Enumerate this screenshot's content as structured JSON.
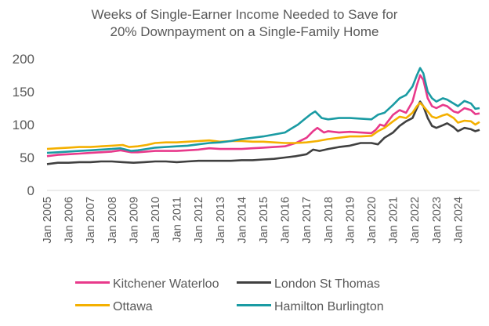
{
  "chart_data": {
    "type": "line",
    "title_lines": [
      "Weeks of Single-Earner Income Needed to Save for",
      "20% Downpayment on a Single-Family Home"
    ],
    "xlabel": "",
    "ylabel": "",
    "ylim": [
      0,
      200
    ],
    "yticks": [
      "0",
      "50",
      "100",
      "150",
      "200"
    ],
    "grid": false,
    "legend": "bottom",
    "categories": [
      "Jan 2005",
      "Jan 2006",
      "Jan 2007",
      "Jan 2008",
      "Jan 2009",
      "Jan 2010",
      "Jan 2011",
      "Jan 2012",
      "Jan 2013",
      "Jan 2014",
      "Jan 2015",
      "Jan 2016",
      "Jan 2017",
      "Jan 2018",
      "Jan 2019",
      "Jan 2020",
      "Jan 2021",
      "Jan 2022",
      "Jan 2023",
      "Jan 2024"
    ],
    "series": [
      {
        "name": "Kitchener Waterloo",
        "color": "#e8398b",
        "points": [
          [
            2005.0,
            52
          ],
          [
            2005.5,
            54
          ],
          [
            2006.0,
            55
          ],
          [
            2006.5,
            56
          ],
          [
            2007.0,
            57
          ],
          [
            2007.5,
            58
          ],
          [
            2008.0,
            59
          ],
          [
            2008.4,
            61
          ],
          [
            2008.9,
            58
          ],
          [
            2009.2,
            58
          ],
          [
            2009.6,
            59
          ],
          [
            2010.0,
            60
          ],
          [
            2010.5,
            60
          ],
          [
            2011.0,
            60
          ],
          [
            2011.5,
            61
          ],
          [
            2012.0,
            62
          ],
          [
            2012.5,
            64
          ],
          [
            2013.0,
            63
          ],
          [
            2013.5,
            63
          ],
          [
            2014.0,
            63
          ],
          [
            2014.5,
            64
          ],
          [
            2015.0,
            65
          ],
          [
            2015.5,
            66
          ],
          [
            2016.0,
            67
          ],
          [
            2016.5,
            72
          ],
          [
            2017.0,
            80
          ],
          [
            2017.3,
            90
          ],
          [
            2017.5,
            95
          ],
          [
            2017.8,
            88
          ],
          [
            2018.0,
            90
          ],
          [
            2018.5,
            88
          ],
          [
            2019.0,
            89
          ],
          [
            2019.5,
            88
          ],
          [
            2020.0,
            87
          ],
          [
            2020.2,
            92
          ],
          [
            2020.4,
            100
          ],
          [
            2020.6,
            98
          ],
          [
            2021.0,
            115
          ],
          [
            2021.3,
            122
          ],
          [
            2021.6,
            118
          ],
          [
            2021.9,
            135
          ],
          [
            2022.1,
            160
          ],
          [
            2022.25,
            175
          ],
          [
            2022.4,
            168
          ],
          [
            2022.6,
            140
          ],
          [
            2022.8,
            128
          ],
          [
            2023.0,
            125
          ],
          [
            2023.3,
            130
          ],
          [
            2023.5,
            128
          ],
          [
            2023.8,
            120
          ],
          [
            2024.0,
            118
          ],
          [
            2024.3,
            125
          ],
          [
            2024.6,
            122
          ],
          [
            2024.8,
            116
          ],
          [
            2025.0,
            117
          ]
        ]
      },
      {
        "name": "London St Thomas",
        "color": "#404040",
        "points": [
          [
            2005.0,
            40
          ],
          [
            2005.5,
            42
          ],
          [
            2006.0,
            42
          ],
          [
            2006.5,
            43
          ],
          [
            2007.0,
            43
          ],
          [
            2007.5,
            44
          ],
          [
            2008.0,
            44
          ],
          [
            2008.5,
            43
          ],
          [
            2009.0,
            42
          ],
          [
            2009.5,
            43
          ],
          [
            2010.0,
            44
          ],
          [
            2010.5,
            44
          ],
          [
            2011.0,
            43
          ],
          [
            2011.5,
            44
          ],
          [
            2012.0,
            45
          ],
          [
            2012.5,
            45
          ],
          [
            2013.0,
            45
          ],
          [
            2013.5,
            45
          ],
          [
            2014.0,
            46
          ],
          [
            2014.5,
            46
          ],
          [
            2015.0,
            47
          ],
          [
            2015.5,
            48
          ],
          [
            2016.0,
            50
          ],
          [
            2016.5,
            52
          ],
          [
            2017.0,
            55
          ],
          [
            2017.3,
            62
          ],
          [
            2017.6,
            60
          ],
          [
            2018.0,
            63
          ],
          [
            2018.5,
            66
          ],
          [
            2019.0,
            68
          ],
          [
            2019.5,
            72
          ],
          [
            2020.0,
            72
          ],
          [
            2020.3,
            70
          ],
          [
            2020.6,
            80
          ],
          [
            2021.0,
            88
          ],
          [
            2021.3,
            98
          ],
          [
            2021.6,
            105
          ],
          [
            2021.9,
            110
          ],
          [
            2022.1,
            125
          ],
          [
            2022.25,
            135
          ],
          [
            2022.4,
            128
          ],
          [
            2022.6,
            110
          ],
          [
            2022.8,
            98
          ],
          [
            2023.0,
            95
          ],
          [
            2023.3,
            99
          ],
          [
            2023.5,
            102
          ],
          [
            2023.8,
            96
          ],
          [
            2024.0,
            90
          ],
          [
            2024.3,
            95
          ],
          [
            2024.6,
            93
          ],
          [
            2024.8,
            90
          ],
          [
            2025.0,
            92
          ]
        ]
      },
      {
        "name": "Ottawa",
        "color": "#f4b000",
        "points": [
          [
            2005.0,
            63
          ],
          [
            2005.5,
            64
          ],
          [
            2006.0,
            65
          ],
          [
            2006.5,
            66
          ],
          [
            2007.0,
            66
          ],
          [
            2007.5,
            67
          ],
          [
            2008.0,
            68
          ],
          [
            2008.5,
            69
          ],
          [
            2008.8,
            66
          ],
          [
            2009.2,
            67
          ],
          [
            2009.6,
            69
          ],
          [
            2010.0,
            72
          ],
          [
            2010.5,
            73
          ],
          [
            2011.0,
            73
          ],
          [
            2011.5,
            74
          ],
          [
            2012.0,
            75
          ],
          [
            2012.5,
            76
          ],
          [
            2013.0,
            74
          ],
          [
            2013.5,
            75
          ],
          [
            2014.0,
            75
          ],
          [
            2014.5,
            74
          ],
          [
            2015.0,
            74
          ],
          [
            2015.5,
            73
          ],
          [
            2016.0,
            72
          ],
          [
            2016.5,
            72
          ],
          [
            2017.0,
            73
          ],
          [
            2017.5,
            75
          ],
          [
            2018.0,
            78
          ],
          [
            2018.5,
            80
          ],
          [
            2019.0,
            82
          ],
          [
            2019.5,
            82
          ],
          [
            2020.0,
            83
          ],
          [
            2020.3,
            90
          ],
          [
            2020.6,
            95
          ],
          [
            2021.0,
            105
          ],
          [
            2021.3,
            112
          ],
          [
            2021.6,
            110
          ],
          [
            2021.9,
            118
          ],
          [
            2022.1,
            128
          ],
          [
            2022.25,
            133
          ],
          [
            2022.4,
            128
          ],
          [
            2022.6,
            120
          ],
          [
            2022.8,
            112
          ],
          [
            2023.0,
            110
          ],
          [
            2023.3,
            114
          ],
          [
            2023.5,
            116
          ],
          [
            2023.8,
            110
          ],
          [
            2024.0,
            103
          ],
          [
            2024.3,
            106
          ],
          [
            2024.6,
            105
          ],
          [
            2024.8,
            100
          ],
          [
            2025.0,
            104
          ]
        ]
      },
      {
        "name": "Hamilton Burlington",
        "color": "#1a9ba3",
        "points": [
          [
            2005.0,
            57
          ],
          [
            2005.5,
            58
          ],
          [
            2006.0,
            59
          ],
          [
            2006.5,
            60
          ],
          [
            2007.0,
            61
          ],
          [
            2007.5,
            62
          ],
          [
            2008.0,
            63
          ],
          [
            2008.4,
            64
          ],
          [
            2008.9,
            60
          ],
          [
            2009.2,
            61
          ],
          [
            2009.6,
            63
          ],
          [
            2010.0,
            65
          ],
          [
            2010.5,
            66
          ],
          [
            2011.0,
            67
          ],
          [
            2011.5,
            68
          ],
          [
            2012.0,
            70
          ],
          [
            2012.5,
            72
          ],
          [
            2013.0,
            73
          ],
          [
            2013.5,
            75
          ],
          [
            2014.0,
            78
          ],
          [
            2014.5,
            80
          ],
          [
            2015.0,
            82
          ],
          [
            2015.5,
            85
          ],
          [
            2016.0,
            88
          ],
          [
            2016.3,
            94
          ],
          [
            2016.6,
            100
          ],
          [
            2016.9,
            108
          ],
          [
            2017.2,
            116
          ],
          [
            2017.4,
            120
          ],
          [
            2017.7,
            110
          ],
          [
            2018.0,
            108
          ],
          [
            2018.5,
            110
          ],
          [
            2019.0,
            110
          ],
          [
            2019.5,
            109
          ],
          [
            2020.0,
            108
          ],
          [
            2020.3,
            115
          ],
          [
            2020.6,
            118
          ],
          [
            2021.0,
            130
          ],
          [
            2021.3,
            140
          ],
          [
            2021.6,
            145
          ],
          [
            2021.9,
            158
          ],
          [
            2022.1,
            175
          ],
          [
            2022.25,
            186
          ],
          [
            2022.4,
            178
          ],
          [
            2022.6,
            150
          ],
          [
            2022.8,
            140
          ],
          [
            2023.0,
            135
          ],
          [
            2023.3,
            140
          ],
          [
            2023.5,
            138
          ],
          [
            2023.8,
            132
          ],
          [
            2024.0,
            128
          ],
          [
            2024.3,
            136
          ],
          [
            2024.6,
            132
          ],
          [
            2024.8,
            124
          ],
          [
            2025.0,
            125
          ]
        ]
      }
    ]
  }
}
